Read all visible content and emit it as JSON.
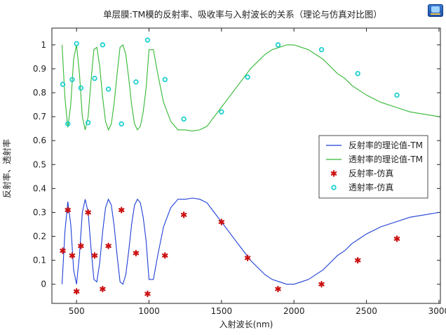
{
  "chart_data": {
    "type": "line",
    "title": "单层膜:TM模的反射率、吸收率与入射波长的关系（理论与仿真对比图）",
    "xlabel": "入射波长(nm)",
    "ylabel": "反射率、透射率",
    "xlim": [
      330,
      3010
    ],
    "ylim": [
      -0.08,
      1.07
    ],
    "xticks": [
      500,
      1000,
      1500,
      2000,
      2500,
      3000
    ],
    "yticks": [
      0,
      0.1,
      0.2,
      0.3,
      0.4,
      0.5,
      0.6,
      0.7,
      0.8,
      0.9,
      1
    ],
    "grid": false,
    "legend_position": "right",
    "series": [
      {
        "name": "反射率的理论值-TM",
        "kind": "line",
        "color": "#1f3fd6",
        "x": [
          400,
          420,
          440,
          460,
          480,
          500,
          520,
          540,
          560,
          580,
          600,
          620,
          640,
          660,
          680,
          700,
          720,
          740,
          760,
          780,
          800,
          820,
          840,
          860,
          880,
          900,
          920,
          940,
          960,
          980,
          1000,
          1030,
          1060,
          1100,
          1150,
          1200,
          1250,
          1300,
          1350,
          1400,
          1450,
          1500,
          1550,
          1600,
          1650,
          1700,
          1750,
          1800,
          1850,
          1900,
          1950,
          2000,
          2050,
          2100,
          2150,
          2200,
          2250,
          2300,
          2350,
          2400,
          2450,
          2500,
          2600,
          2700,
          2800,
          2900,
          3000
        ],
        "y": [
          0.0,
          0.22,
          0.345,
          0.25,
          0.06,
          0.0,
          0.12,
          0.3,
          0.355,
          0.3,
          0.15,
          0.02,
          0.01,
          0.09,
          0.22,
          0.32,
          0.355,
          0.33,
          0.24,
          0.12,
          0.01,
          0.0,
          0.04,
          0.14,
          0.25,
          0.33,
          0.355,
          0.34,
          0.28,
          0.18,
          0.02,
          0.02,
          0.12,
          0.24,
          0.32,
          0.355,
          0.355,
          0.36,
          0.355,
          0.34,
          0.3,
          0.26,
          0.22,
          0.18,
          0.14,
          0.1,
          0.07,
          0.04,
          0.02,
          0.01,
          0.0,
          0.0,
          0.01,
          0.02,
          0.04,
          0.06,
          0.09,
          0.12,
          0.14,
          0.17,
          0.19,
          0.21,
          0.24,
          0.26,
          0.28,
          0.29,
          0.3
        ]
      },
      {
        "name": "透射率的理论值-TM",
        "kind": "line",
        "color": "#33b833",
        "x": [
          400,
          420,
          440,
          460,
          480,
          500,
          520,
          540,
          560,
          580,
          600,
          620,
          640,
          660,
          680,
          700,
          720,
          740,
          760,
          780,
          800,
          820,
          840,
          860,
          880,
          900,
          920,
          940,
          960,
          980,
          1000,
          1030,
          1060,
          1100,
          1150,
          1200,
          1250,
          1300,
          1350,
          1400,
          1450,
          1500,
          1550,
          1600,
          1650,
          1700,
          1750,
          1800,
          1850,
          1900,
          1950,
          2000,
          2050,
          2100,
          2150,
          2200,
          2250,
          2300,
          2350,
          2400,
          2450,
          2500,
          2600,
          2700,
          2800,
          2900,
          3000
        ],
        "y": [
          1.0,
          0.78,
          0.655,
          0.75,
          0.94,
          1.0,
          0.88,
          0.7,
          0.645,
          0.7,
          0.85,
          0.98,
          0.99,
          0.91,
          0.78,
          0.68,
          0.645,
          0.67,
          0.76,
          0.88,
          0.99,
          1.0,
          0.96,
          0.86,
          0.75,
          0.67,
          0.645,
          0.66,
          0.72,
          0.82,
          0.98,
          0.98,
          0.88,
          0.76,
          0.68,
          0.645,
          0.645,
          0.64,
          0.645,
          0.66,
          0.7,
          0.74,
          0.78,
          0.82,
          0.86,
          0.9,
          0.93,
          0.96,
          0.98,
          0.99,
          1.0,
          1.0,
          0.99,
          0.98,
          0.96,
          0.94,
          0.91,
          0.88,
          0.86,
          0.83,
          0.81,
          0.79,
          0.76,
          0.74,
          0.72,
          0.71,
          0.7
        ]
      },
      {
        "name": "反射率-仿真",
        "kind": "marker",
        "marker": "asterisk",
        "color": "#cc1111",
        "x": [
          405,
          440,
          470,
          500,
          530,
          580,
          625,
          680,
          720,
          810,
          910,
          990,
          1110,
          1240,
          1500,
          1680,
          1890,
          2190,
          2440,
          2710
        ],
        "y": [
          0.14,
          0.31,
          0.12,
          -0.03,
          0.16,
          0.3,
          0.12,
          -0.02,
          0.16,
          0.31,
          0.13,
          -0.04,
          0.12,
          0.29,
          0.26,
          0.11,
          -0.02,
          0.0,
          0.1,
          0.19
        ]
      },
      {
        "name": "透射率-仿真",
        "kind": "marker",
        "marker": "circle",
        "color": "#1fcfcf",
        "x": [
          405,
          440,
          470,
          500,
          530,
          580,
          625,
          680,
          720,
          810,
          910,
          990,
          1110,
          1240,
          1500,
          1680,
          1890,
          2190,
          2440,
          2710
        ],
        "y": [
          0.835,
          0.67,
          0.855,
          1.005,
          0.82,
          0.675,
          0.86,
          1.0,
          0.815,
          0.67,
          0.845,
          1.02,
          0.855,
          0.69,
          0.72,
          0.865,
          1.0,
          0.98,
          0.88,
          0.79
        ]
      }
    ]
  }
}
